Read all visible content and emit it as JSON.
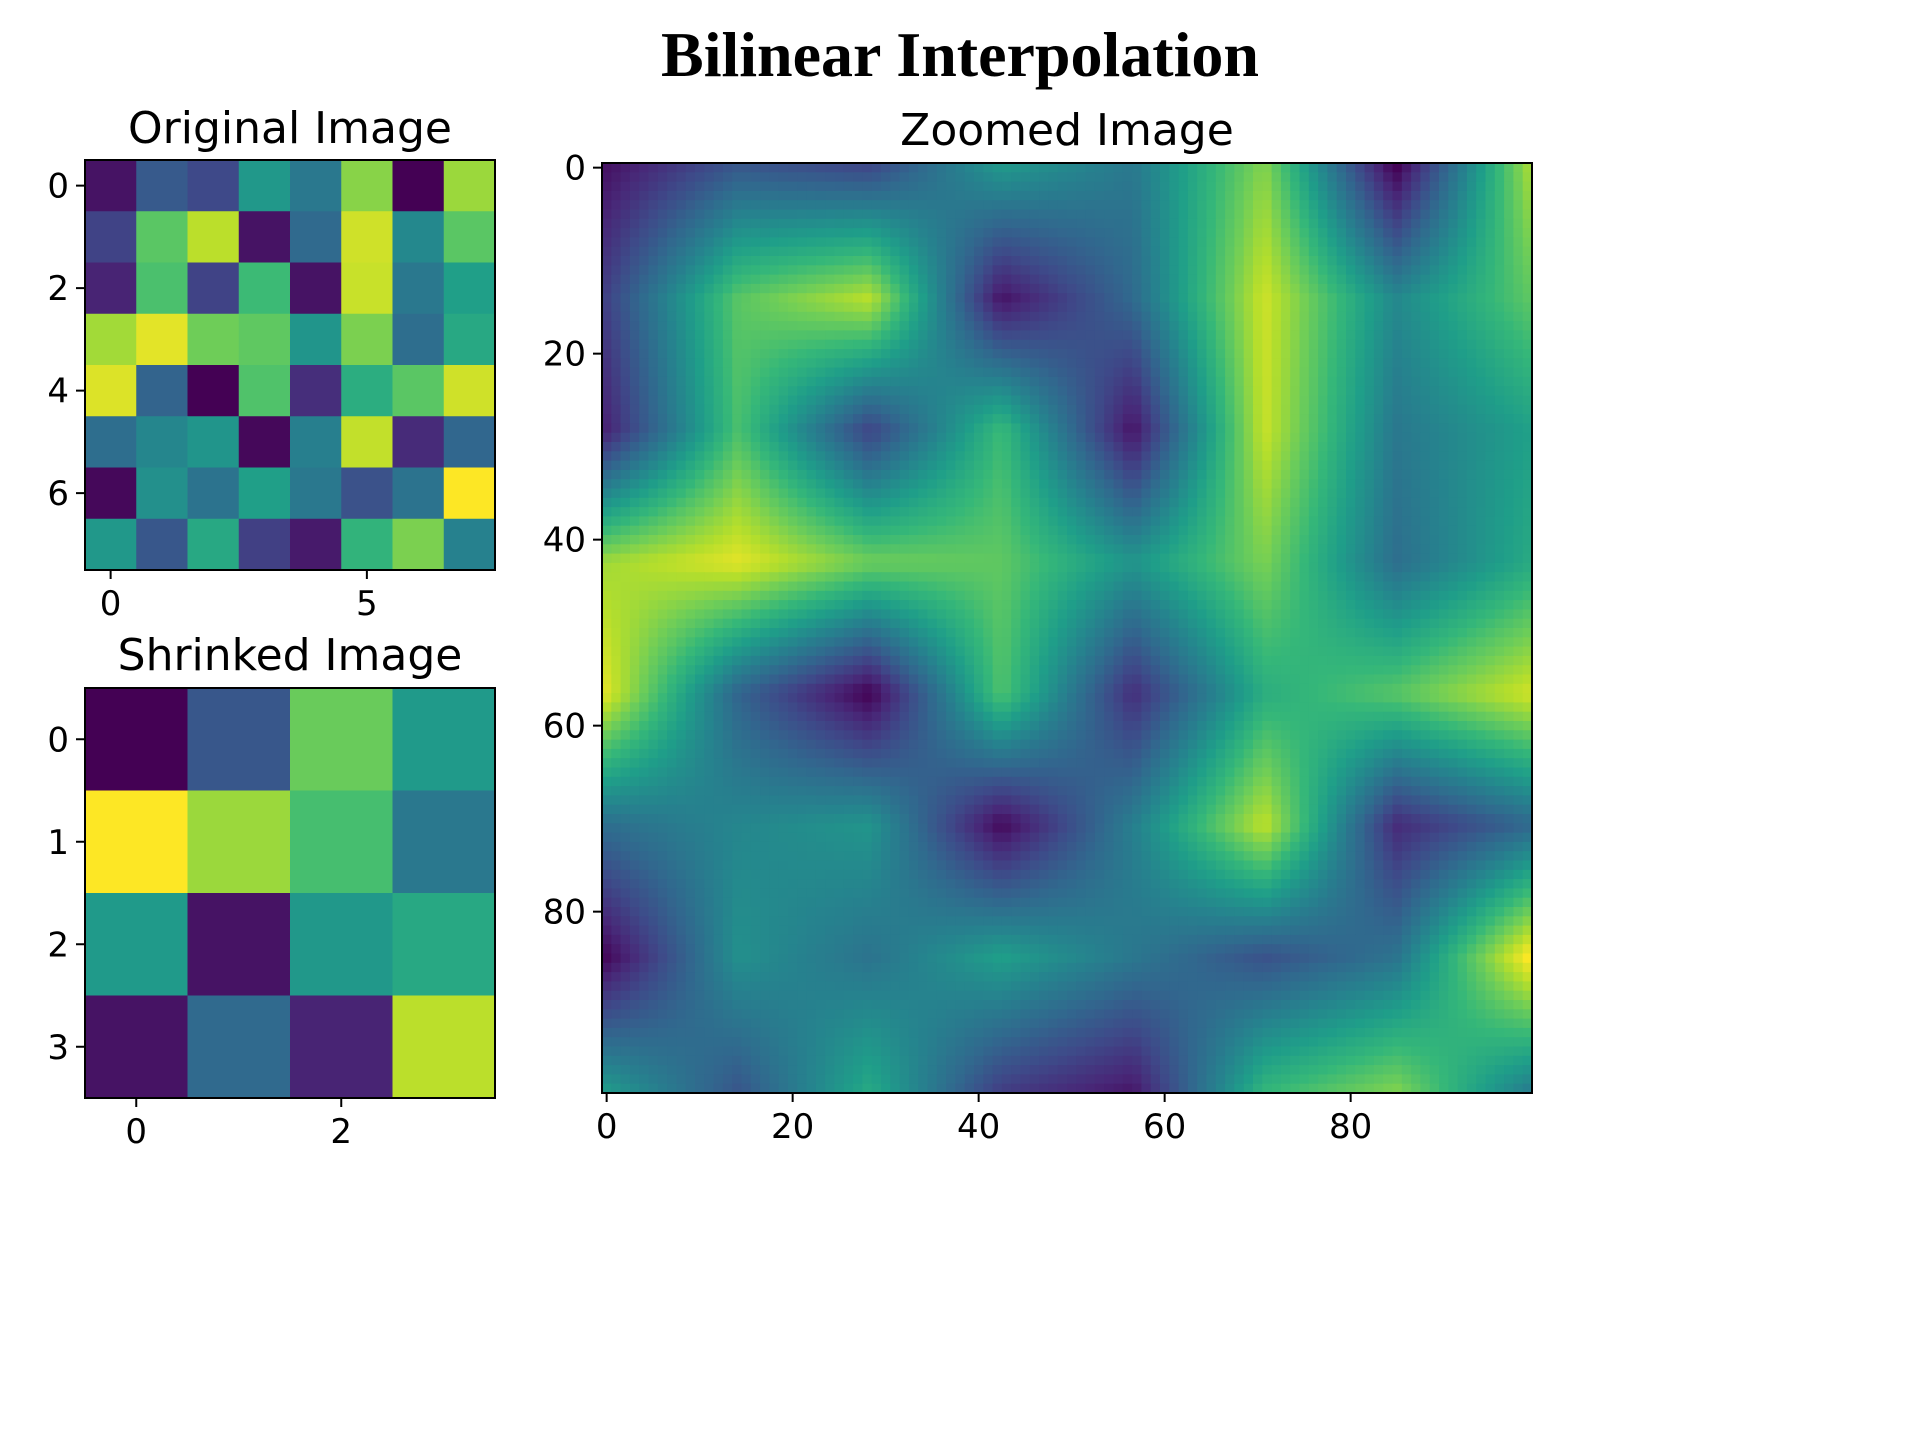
{
  "figure": {
    "suptitle": "Bilinear Interpolation"
  },
  "chart_data": [
    {
      "type": "heatmap",
      "title": "Original Image",
      "colormap": "viridis",
      "rows": 8,
      "cols": 8,
      "xticks": [
        0,
        5
      ],
      "yticks": [
        0,
        2,
        4,
        6
      ],
      "xlim": [
        -0.5,
        7.5
      ],
      "ylim": [
        7.5,
        -0.5
      ],
      "values": [
        [
          0.05,
          0.28,
          0.22,
          0.53,
          0.4,
          0.82,
          0.0,
          0.85
        ],
        [
          0.2,
          0.74,
          0.9,
          0.05,
          0.34,
          0.93,
          0.47,
          0.74
        ],
        [
          0.1,
          0.71,
          0.2,
          0.68,
          0.05,
          0.92,
          0.4,
          0.56
        ],
        [
          0.86,
          0.96,
          0.78,
          0.75,
          0.52,
          0.8,
          0.36,
          0.6
        ],
        [
          0.95,
          0.32,
          0.0,
          0.72,
          0.13,
          0.62,
          0.74,
          0.93
        ],
        [
          0.36,
          0.46,
          0.52,
          0.02,
          0.43,
          0.91,
          0.12,
          0.33
        ],
        [
          0.02,
          0.5,
          0.38,
          0.56,
          0.4,
          0.25,
          0.38,
          1.0
        ],
        [
          0.53,
          0.27,
          0.6,
          0.19,
          0.07,
          0.65,
          0.8,
          0.44
        ]
      ]
    },
    {
      "type": "heatmap",
      "title": "Shrinked Image",
      "colormap": "viridis",
      "rows": 4,
      "cols": 4,
      "xticks": [
        0,
        2
      ],
      "yticks": [
        0,
        1,
        2,
        3
      ],
      "xlim": [
        -0.5,
        3.5
      ],
      "ylim": [
        3.5,
        -0.5
      ],
      "values": [
        [
          0.0,
          0.27,
          0.77,
          0.54
        ],
        [
          1.0,
          0.85,
          0.7,
          0.4
        ],
        [
          0.54,
          0.05,
          0.53,
          0.6
        ],
        [
          0.05,
          0.34,
          0.1,
          0.9
        ]
      ]
    },
    {
      "type": "heatmap",
      "title": "Zoomed Image",
      "colormap": "viridis",
      "rows": 100,
      "cols": 100,
      "interpolation": "bilinear",
      "source": "Original Image",
      "xticks": [
        0,
        20,
        40,
        60,
        80
      ],
      "yticks": [
        0,
        20,
        40,
        60,
        80
      ],
      "xlim": [
        -0.5,
        99.5
      ],
      "ylim": [
        99.5,
        -0.5
      ]
    }
  ]
}
